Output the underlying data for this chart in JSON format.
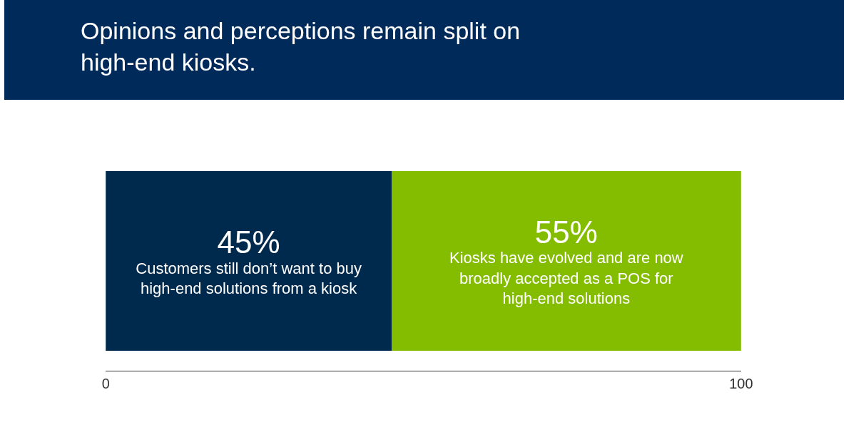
{
  "chart_data": {
    "type": "bar",
    "orientation": "horizontal",
    "stacked": true,
    "title": "Opinions and perceptions remain split on high-end kiosks.",
    "categories": [
      null
    ],
    "series": [
      {
        "name": "Customers still don’t want to buy high-end solutions from a kiosk",
        "color": "#002a4d",
        "values": [
          45
        ],
        "value_labels": [
          "45%"
        ]
      },
      {
        "name": "Kiosks have evolved and are now broadly accepted as a POS for high-end solutions",
        "color": "#84bd00",
        "values": [
          55
        ],
        "value_labels": [
          "55%"
        ]
      }
    ],
    "xlim": [
      0,
      100
    ],
    "xticks": [
      0,
      100
    ],
    "legend": false,
    "tick_labels": "x"
  }
}
